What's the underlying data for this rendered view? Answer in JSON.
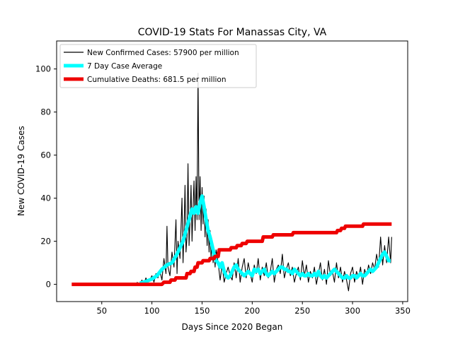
{
  "chart_data": {
    "type": "line",
    "title": "COVID-19 Stats For Manassas City, VA",
    "xlabel": "Days Since 2020 Began",
    "ylabel": "New COVID-19 Cases",
    "xlim": [
      5,
      355
    ],
    "ylim": [
      -8,
      113
    ],
    "xticks": [
      50,
      100,
      150,
      200,
      250,
      300,
      350
    ],
    "yticks": [
      0,
      20,
      40,
      60,
      80,
      100
    ],
    "legend_position": "top-left",
    "series": [
      {
        "name": "New Confirmed Cases: 57900 per million",
        "color": "#000000",
        "style": "thin",
        "points": [
          [
            85,
            1
          ],
          [
            88,
            0
          ],
          [
            90,
            2
          ],
          [
            92,
            0
          ],
          [
            94,
            3
          ],
          [
            96,
            1
          ],
          [
            98,
            2
          ],
          [
            100,
            4
          ],
          [
            102,
            1
          ],
          [
            104,
            5
          ],
          [
            106,
            3
          ],
          [
            108,
            6
          ],
          [
            110,
            2
          ],
          [
            112,
            12
          ],
          [
            114,
            5
          ],
          [
            115,
            27
          ],
          [
            116,
            8
          ],
          [
            118,
            4
          ],
          [
            120,
            15
          ],
          [
            122,
            8
          ],
          [
            124,
            30
          ],
          [
            125,
            5
          ],
          [
            126,
            20
          ],
          [
            128,
            12
          ],
          [
            130,
            40
          ],
          [
            131,
            10
          ],
          [
            132,
            25
          ],
          [
            133,
            46
          ],
          [
            134,
            15
          ],
          [
            135,
            22
          ],
          [
            136,
            56
          ],
          [
            137,
            18
          ],
          [
            138,
            30
          ],
          [
            139,
            46
          ],
          [
            140,
            20
          ],
          [
            141,
            35
          ],
          [
            142,
            48
          ],
          [
            143,
            25
          ],
          [
            144,
            50
          ],
          [
            145,
            30
          ],
          [
            146,
            98
          ],
          [
            147,
            30
          ],
          [
            148,
            50
          ],
          [
            149,
            25
          ],
          [
            150,
            45
          ],
          [
            151,
            28
          ],
          [
            152,
            41
          ],
          [
            153,
            22
          ],
          [
            154,
            35
          ],
          [
            155,
            18
          ],
          [
            156,
            30
          ],
          [
            157,
            15
          ],
          [
            158,
            25
          ],
          [
            159,
            12
          ],
          [
            160,
            20
          ],
          [
            161,
            10
          ],
          [
            162,
            15
          ],
          [
            163,
            8
          ],
          [
            164,
            16
          ],
          [
            166,
            10
          ],
          [
            168,
            2
          ],
          [
            170,
            9
          ],
          [
            172,
            1
          ],
          [
            174,
            5
          ],
          [
            176,
            8
          ],
          [
            178,
            4
          ],
          [
            180,
            2
          ],
          [
            182,
            10
          ],
          [
            184,
            3
          ],
          [
            186,
            12
          ],
          [
            188,
            1
          ],
          [
            190,
            8
          ],
          [
            192,
            12
          ],
          [
            194,
            3
          ],
          [
            196,
            10
          ],
          [
            198,
            5
          ],
          [
            200,
            1
          ],
          [
            202,
            9
          ],
          [
            204,
            5
          ],
          [
            206,
            12
          ],
          [
            208,
            2
          ],
          [
            210,
            8
          ],
          [
            212,
            4
          ],
          [
            214,
            10
          ],
          [
            216,
            3
          ],
          [
            218,
            6
          ],
          [
            220,
            12
          ],
          [
            222,
            1
          ],
          [
            224,
            7
          ],
          [
            226,
            9
          ],
          [
            228,
            5
          ],
          [
            230,
            14
          ],
          [
            232,
            3
          ],
          [
            234,
            7
          ],
          [
            236,
            10
          ],
          [
            238,
            4
          ],
          [
            240,
            8
          ],
          [
            242,
            1
          ],
          [
            244,
            5
          ],
          [
            246,
            8
          ],
          [
            248,
            2
          ],
          [
            250,
            11
          ],
          [
            252,
            4
          ],
          [
            254,
            9
          ],
          [
            256,
            1
          ],
          [
            258,
            6
          ],
          [
            260,
            3
          ],
          [
            262,
            8
          ],
          [
            264,
            0
          ],
          [
            266,
            5
          ],
          [
            268,
            10
          ],
          [
            270,
            2
          ],
          [
            272,
            7
          ],
          [
            274,
            0
          ],
          [
            276,
            11
          ],
          [
            278,
            4
          ],
          [
            280,
            6
          ],
          [
            282,
            1
          ],
          [
            284,
            10
          ],
          [
            286,
            3
          ],
          [
            288,
            8
          ],
          [
            290,
            1
          ],
          [
            292,
            6
          ],
          [
            294,
            2
          ],
          [
            296,
            -3
          ],
          [
            298,
            5
          ],
          [
            300,
            8
          ],
          [
            302,
            1
          ],
          [
            304,
            6
          ],
          [
            306,
            3
          ],
          [
            308,
            8
          ],
          [
            310,
            0
          ],
          [
            312,
            7
          ],
          [
            314,
            4
          ],
          [
            316,
            9
          ],
          [
            318,
            5
          ],
          [
            320,
            10
          ],
          [
            322,
            7
          ],
          [
            324,
            14
          ],
          [
            326,
            8
          ],
          [
            328,
            22
          ],
          [
            330,
            9
          ],
          [
            332,
            18
          ],
          [
            334,
            10
          ],
          [
            336,
            22
          ],
          [
            338,
            10
          ],
          [
            339,
            22
          ]
        ]
      },
      {
        "name": "7 Day Case Average",
        "color": "#00ffff",
        "style": "thick",
        "points": [
          [
            88,
            0.5
          ],
          [
            95,
            1.5
          ],
          [
            100,
            2.5
          ],
          [
            105,
            4
          ],
          [
            110,
            7
          ],
          [
            115,
            9
          ],
          [
            120,
            10
          ],
          [
            125,
            14
          ],
          [
            128,
            17
          ],
          [
            131,
            20
          ],
          [
            134,
            25
          ],
          [
            137,
            30
          ],
          [
            140,
            35
          ],
          [
            142,
            33
          ],
          [
            144,
            36
          ],
          [
            146,
            33
          ],
          [
            148,
            38
          ],
          [
            150,
            41
          ],
          [
            152,
            36
          ],
          [
            154,
            30
          ],
          [
            156,
            25
          ],
          [
            158,
            22
          ],
          [
            160,
            18
          ],
          [
            162,
            14
          ],
          [
            164,
            11
          ],
          [
            166,
            10
          ],
          [
            168,
            8
          ],
          [
            170,
            10
          ],
          [
            172,
            6
          ],
          [
            174,
            4
          ],
          [
            176,
            3
          ],
          [
            178,
            4
          ],
          [
            180,
            6
          ],
          [
            182,
            8
          ],
          [
            184,
            9
          ],
          [
            186,
            7
          ],
          [
            188,
            6
          ],
          [
            190,
            5
          ],
          [
            192,
            4
          ],
          [
            194,
            5
          ],
          [
            196,
            6
          ],
          [
            198,
            5
          ],
          [
            200,
            4
          ],
          [
            202,
            7
          ],
          [
            204,
            6
          ],
          [
            206,
            7
          ],
          [
            208,
            5
          ],
          [
            210,
            6
          ],
          [
            212,
            7
          ],
          [
            214,
            5
          ],
          [
            216,
            4
          ],
          [
            218,
            5
          ],
          [
            220,
            6
          ],
          [
            222,
            5
          ],
          [
            224,
            6
          ],
          [
            226,
            7
          ],
          [
            228,
            8
          ],
          [
            230,
            8
          ],
          [
            232,
            7
          ],
          [
            234,
            7
          ],
          [
            236,
            6
          ],
          [
            238,
            6
          ],
          [
            240,
            5
          ],
          [
            242,
            7
          ],
          [
            244,
            6
          ],
          [
            246,
            5
          ],
          [
            248,
            4
          ],
          [
            250,
            5
          ],
          [
            252,
            4
          ],
          [
            254,
            4
          ],
          [
            256,
            5
          ],
          [
            258,
            4
          ],
          [
            260,
            4
          ],
          [
            262,
            5
          ],
          [
            264,
            4
          ],
          [
            266,
            6
          ],
          [
            268,
            4
          ],
          [
            270,
            3
          ],
          [
            272,
            4
          ],
          [
            274,
            3
          ],
          [
            276,
            4
          ],
          [
            278,
            5
          ],
          [
            280,
            6
          ],
          [
            282,
            7
          ],
          [
            284,
            6
          ],
          [
            286,
            5
          ],
          [
            288,
            4
          ],
          [
            290,
            3
          ],
          [
            292,
            3
          ],
          [
            294,
            4
          ],
          [
            296,
            3
          ],
          [
            298,
            3
          ],
          [
            300,
            4
          ],
          [
            302,
            4
          ],
          [
            304,
            3
          ],
          [
            306,
            4
          ],
          [
            308,
            5
          ],
          [
            310,
            4
          ],
          [
            312,
            4
          ],
          [
            314,
            5
          ],
          [
            316,
            6
          ],
          [
            318,
            7
          ],
          [
            320,
            6
          ],
          [
            322,
            7
          ],
          [
            324,
            8
          ],
          [
            326,
            10
          ],
          [
            328,
            12
          ],
          [
            330,
            14
          ],
          [
            332,
            15
          ],
          [
            334,
            13
          ],
          [
            336,
            11
          ],
          [
            338,
            11
          ]
        ]
      },
      {
        "name": "Cumulative Deaths: 681.5 per million",
        "color": "#ee0000",
        "style": "thick",
        "points": [
          [
            20,
            0
          ],
          [
            110,
            0
          ],
          [
            112,
            1
          ],
          [
            118,
            1
          ],
          [
            119,
            2
          ],
          [
            123,
            2
          ],
          [
            124,
            3
          ],
          [
            134,
            3
          ],
          [
            135,
            5
          ],
          [
            138,
            5
          ],
          [
            139,
            6
          ],
          [
            142,
            6
          ],
          [
            143,
            8
          ],
          [
            145,
            8
          ],
          [
            146,
            10
          ],
          [
            150,
            10
          ],
          [
            151,
            11
          ],
          [
            157,
            11
          ],
          [
            158,
            12
          ],
          [
            162,
            12
          ],
          [
            163,
            13
          ],
          [
            166,
            13
          ],
          [
            167,
            16
          ],
          [
            178,
            16
          ],
          [
            179,
            17
          ],
          [
            184,
            17
          ],
          [
            185,
            18
          ],
          [
            189,
            18
          ],
          [
            190,
            19
          ],
          [
            194,
            19
          ],
          [
            195,
            20
          ],
          [
            210,
            20
          ],
          [
            211,
            22
          ],
          [
            220,
            22
          ],
          [
            221,
            23
          ],
          [
            230,
            23
          ],
          [
            231,
            23
          ],
          [
            240,
            23
          ],
          [
            241,
            24
          ],
          [
            268,
            24
          ],
          [
            269,
            24
          ],
          [
            284,
            24
          ],
          [
            285,
            25
          ],
          [
            288,
            25
          ],
          [
            289,
            26
          ],
          [
            292,
            26
          ],
          [
            293,
            27
          ],
          [
            310,
            27
          ],
          [
            311,
            28
          ],
          [
            339,
            28
          ]
        ]
      }
    ]
  }
}
